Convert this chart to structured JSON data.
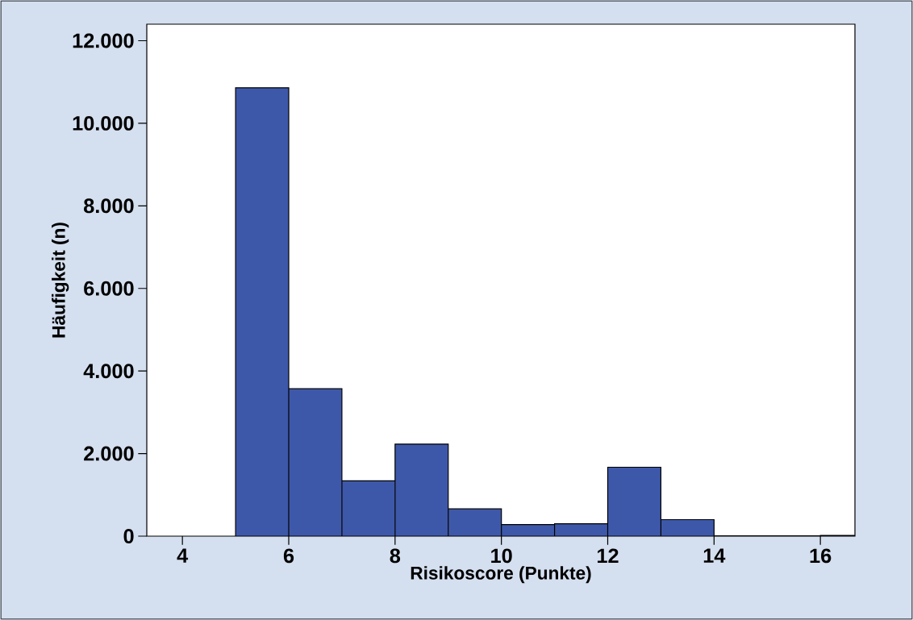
{
  "chart_data": {
    "type": "histogram",
    "xlabel": "Risikoscore (Punkte)",
    "ylabel": "Häufigkeit (n)",
    "bins": [
      5,
      6,
      7,
      8,
      9,
      10,
      11,
      12,
      13,
      14,
      15,
      16,
      17
    ],
    "values": [
      10860,
      3570,
      1340,
      2230,
      660,
      280,
      300,
      1670,
      400,
      10,
      10,
      20
    ],
    "color": "#3e58a9",
    "xlim": [
      3.33,
      16.65
    ],
    "ylim": [
      0,
      12400
    ],
    "xticks": [
      4,
      6,
      8,
      10,
      12,
      14,
      16
    ],
    "yticks": [
      {
        "value": 0,
        "label": "0"
      },
      {
        "value": 2000,
        "label": "2.000"
      },
      {
        "value": 4000,
        "label": "4.000"
      },
      {
        "value": 6000,
        "label": "6.000"
      },
      {
        "value": 8000,
        "label": "8.000"
      },
      {
        "value": 10000,
        "label": "10.000"
      },
      {
        "value": 12000,
        "label": "12.000"
      }
    ],
    "grid": false
  }
}
